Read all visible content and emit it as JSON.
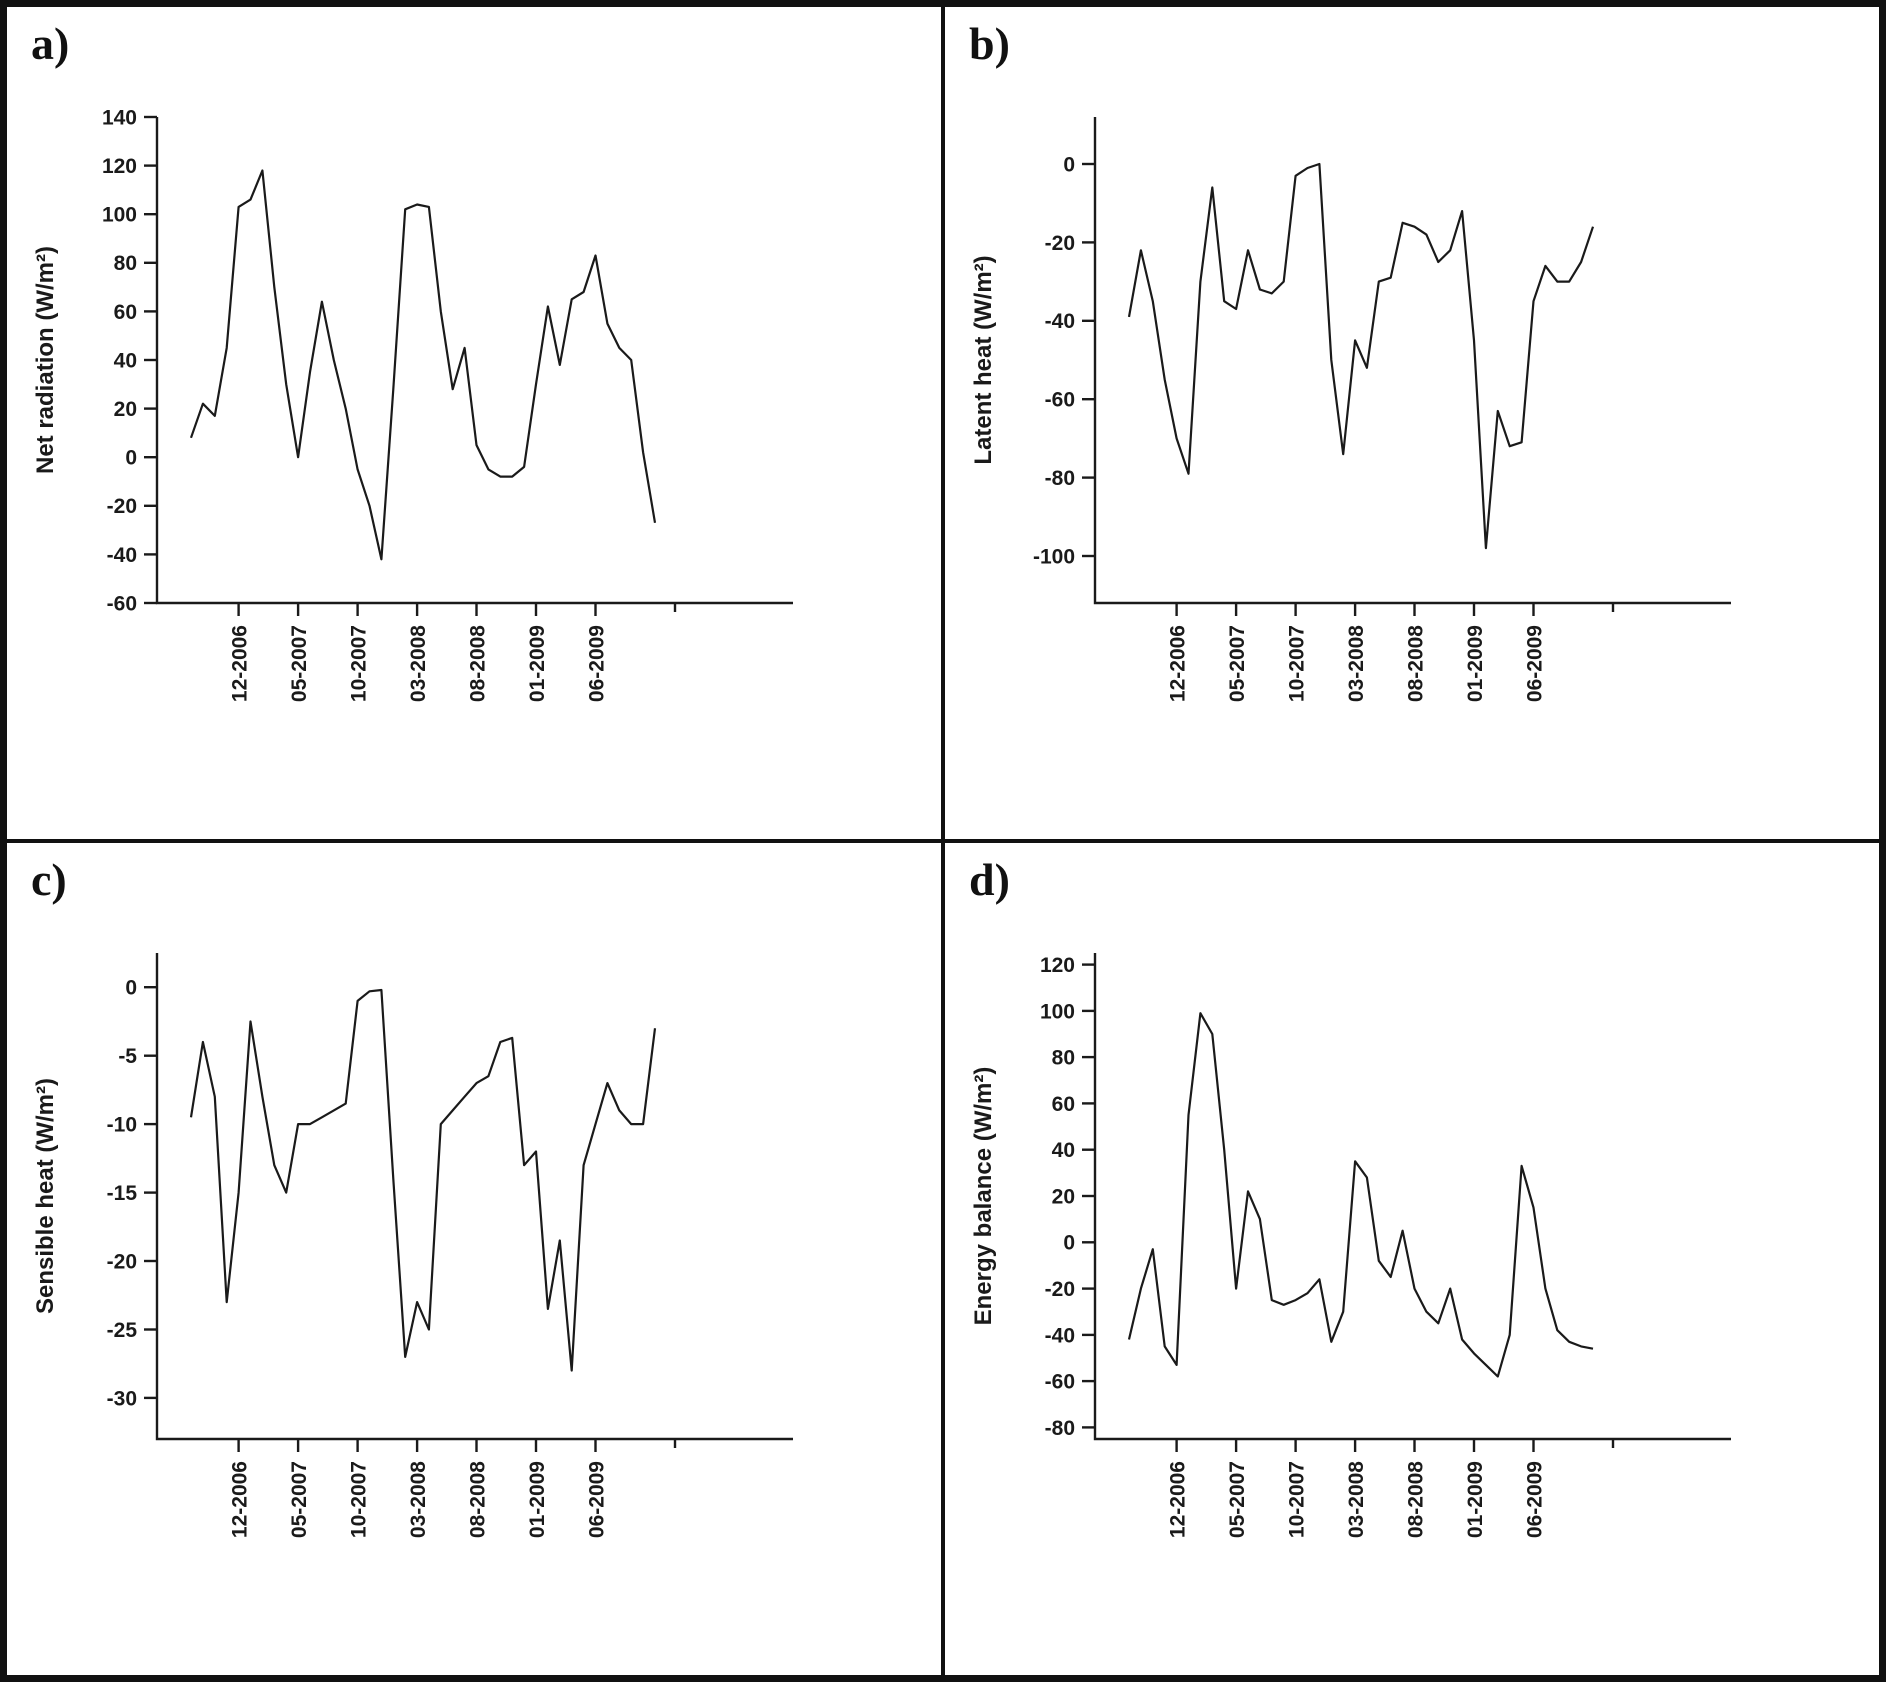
{
  "figure_title": "",
  "line_color": "#1a1a1a",
  "chart_data": [
    {
      "panel": "a)",
      "type": "line",
      "title": "",
      "xlabel": "",
      "ylabel": "Net radiation (W/m²)",
      "ylim": [
        -60,
        140
      ],
      "yticks": [
        140,
        120,
        100,
        80,
        60,
        40,
        20,
        0,
        -20,
        -40,
        -60
      ],
      "grid": false,
      "legend": false,
      "x_tick_labels": [
        "12-2006",
        "05-2007",
        "10-2007",
        "03-2008",
        "08-2008",
        "01-2009",
        "06-2009"
      ],
      "x_tick_indices": [
        4,
        9,
        14,
        19,
        24,
        29,
        34
      ],
      "x": [
        "08-2006",
        "09-2006",
        "10-2006",
        "11-2006",
        "12-2006",
        "01-2007",
        "02-2007",
        "03-2007",
        "04-2007",
        "05-2007",
        "06-2007",
        "07-2007",
        "08-2007",
        "09-2007",
        "10-2007",
        "11-2007",
        "12-2007",
        "01-2008",
        "02-2008",
        "03-2008",
        "04-2008",
        "05-2008",
        "06-2008",
        "07-2008",
        "08-2008",
        "09-2008",
        "10-2008",
        "11-2008",
        "12-2008",
        "01-2009",
        "02-2009",
        "03-2009",
        "04-2009",
        "05-2009",
        "06-2009",
        "07-2009",
        "08-2009",
        "09-2009",
        "10-2009",
        "11-2009"
      ],
      "values": [
        8,
        22,
        17,
        45,
        103,
        106,
        118,
        70,
        30,
        0,
        35,
        64,
        40,
        20,
        -5,
        -20,
        -42,
        28,
        102,
        104,
        103,
        60,
        28,
        45,
        5,
        -5,
        -8,
        -8,
        -4,
        30,
        62,
        38,
        65,
        68,
        83,
        55,
        45,
        40,
        2,
        -27
      ]
    },
    {
      "panel": "b)",
      "type": "line",
      "title": "",
      "xlabel": "",
      "ylabel": "Latent heat (W/m²)",
      "ylim": [
        -112,
        12
      ],
      "yticks": [
        0,
        -20,
        -40,
        -60,
        -80,
        -100
      ],
      "grid": false,
      "legend": false,
      "x_tick_labels": [
        "12-2006",
        "05-2007",
        "10-2007",
        "03-2008",
        "08-2008",
        "01-2009",
        "06-2009"
      ],
      "x_tick_indices": [
        4,
        9,
        14,
        19,
        24,
        29,
        34
      ],
      "x": [
        "08-2006",
        "09-2006",
        "10-2006",
        "11-2006",
        "12-2006",
        "01-2007",
        "02-2007",
        "03-2007",
        "04-2007",
        "05-2007",
        "06-2007",
        "07-2007",
        "08-2007",
        "09-2007",
        "10-2007",
        "11-2007",
        "12-2007",
        "01-2008",
        "02-2008",
        "03-2008",
        "04-2008",
        "05-2008",
        "06-2008",
        "07-2008",
        "08-2008",
        "09-2008",
        "10-2008",
        "11-2008",
        "12-2008",
        "01-2009",
        "02-2009",
        "03-2009",
        "04-2009",
        "05-2009",
        "06-2009",
        "07-2009",
        "08-2009",
        "09-2009",
        "10-2009",
        "11-2009"
      ],
      "values": [
        -39,
        -22,
        -35,
        -55,
        -70,
        -79,
        -30,
        -6,
        -35,
        -37,
        -22,
        -32,
        -33,
        -30,
        -3,
        -1,
        0,
        -50,
        -74,
        -45,
        -52,
        -30,
        -29,
        -15,
        -16,
        -18,
        -25,
        -22,
        -12,
        -45,
        -98,
        -63,
        -72,
        -71,
        -35,
        -26,
        -30,
        -30,
        -25,
        -16
      ]
    },
    {
      "panel": "c)",
      "type": "line",
      "title": "",
      "xlabel": "",
      "ylabel": "Sensible heat (W/m²)",
      "ylim": [
        -33,
        2.5
      ],
      "yticks": [
        0,
        -5,
        -10,
        -15,
        -20,
        -25,
        -30
      ],
      "grid": false,
      "legend": false,
      "x_tick_labels": [
        "12-2006",
        "05-2007",
        "10-2007",
        "03-2008",
        "08-2008",
        "01-2009",
        "06-2009"
      ],
      "x_tick_indices": [
        4,
        9,
        14,
        19,
        24,
        29,
        34
      ],
      "x": [
        "08-2006",
        "09-2006",
        "10-2006",
        "11-2006",
        "12-2006",
        "01-2007",
        "02-2007",
        "03-2007",
        "04-2007",
        "05-2007",
        "06-2007",
        "07-2007",
        "08-2007",
        "09-2007",
        "10-2007",
        "11-2007",
        "12-2007",
        "01-2008",
        "02-2008",
        "03-2008",
        "04-2008",
        "05-2008",
        "06-2008",
        "07-2008",
        "08-2008",
        "09-2008",
        "10-2008",
        "11-2008",
        "12-2008",
        "01-2009",
        "02-2009",
        "03-2009",
        "04-2009",
        "05-2009",
        "06-2009",
        "07-2009",
        "08-2009",
        "09-2009",
        "10-2009",
        "11-2009"
      ],
      "values": [
        -9.5,
        -4,
        -8,
        -23,
        -15,
        -2.5,
        -8,
        -13,
        -15,
        -10,
        -10,
        -9.5,
        -9,
        -8.5,
        -1,
        -0.3,
        -0.2,
        -14,
        -27,
        -23,
        -25,
        -10,
        -9,
        -8,
        -7,
        -6.5,
        -4,
        -3.7,
        -13,
        -12,
        -23.5,
        -18.5,
        -28,
        -13,
        -10,
        -7,
        -9,
        -10,
        -10,
        -3
      ]
    },
    {
      "panel": "d)",
      "type": "line",
      "title": "",
      "xlabel": "",
      "ylabel": "Energy balance (W/m²)",
      "ylim": [
        -85,
        125
      ],
      "yticks": [
        120,
        100,
        80,
        60,
        40,
        20,
        0,
        -20,
        -40,
        -60,
        -80
      ],
      "grid": false,
      "legend": false,
      "x_tick_labels": [
        "12-2006",
        "05-2007",
        "10-2007",
        "03-2008",
        "08-2008",
        "01-2009",
        "06-2009"
      ],
      "x_tick_indices": [
        4,
        9,
        14,
        19,
        24,
        29,
        34
      ],
      "x": [
        "08-2006",
        "09-2006",
        "10-2006",
        "11-2006",
        "12-2006",
        "01-2007",
        "02-2007",
        "03-2007",
        "04-2007",
        "05-2007",
        "06-2007",
        "07-2007",
        "08-2007",
        "09-2007",
        "10-2007",
        "11-2007",
        "12-2007",
        "01-2008",
        "02-2008",
        "03-2008",
        "04-2008",
        "05-2008",
        "06-2008",
        "07-2008",
        "08-2008",
        "09-2008",
        "10-2008",
        "11-2008",
        "12-2008",
        "01-2009",
        "02-2009",
        "03-2009",
        "04-2009",
        "05-2009",
        "06-2009",
        "07-2009",
        "08-2009",
        "09-2009",
        "10-2009",
        "11-2009"
      ],
      "values": [
        -42,
        -20,
        -3,
        -45,
        -53,
        55,
        99,
        90,
        40,
        -20,
        22,
        10,
        -25,
        -27,
        -25,
        -22,
        -16,
        -43,
        -30,
        35,
        28,
        -8,
        -15,
        5,
        -20,
        -30,
        -35,
        -20,
        -42,
        -48,
        -53,
        -58,
        -40,
        33,
        15,
        -20,
        -38,
        -43,
        -45,
        -46
      ]
    }
  ]
}
